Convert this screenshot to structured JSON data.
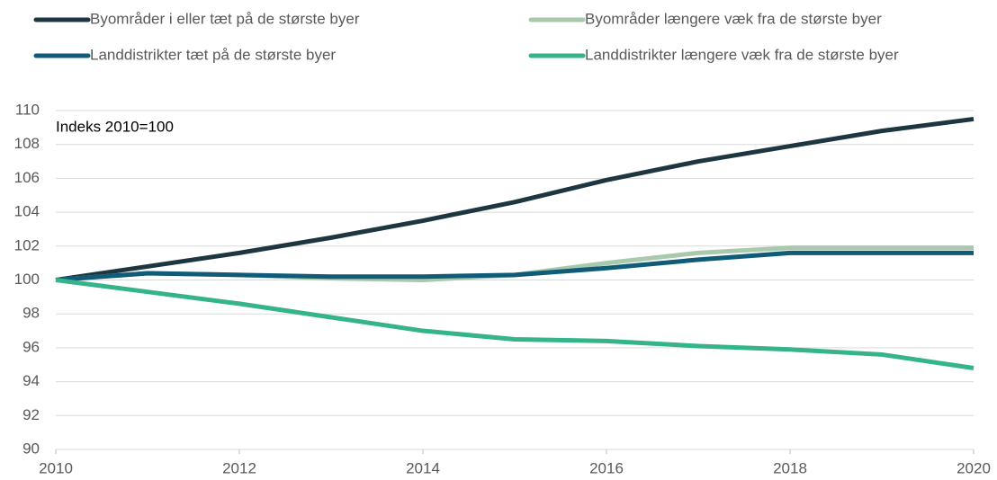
{
  "chart_data": {
    "type": "line",
    "annotation": "Indeks 2010=100",
    "x": [
      2010,
      2011,
      2012,
      2013,
      2014,
      2015,
      2016,
      2017,
      2018,
      2019,
      2020
    ],
    "series": [
      {
        "name": "Byområder i eller tæt på de største byer",
        "color": "#1d3640",
        "values": [
          100,
          100.8,
          101.6,
          102.5,
          103.5,
          104.6,
          105.9,
          107.0,
          107.9,
          108.8,
          109.5
        ]
      },
      {
        "name": "Byområder længere væk fra de største byer",
        "color": "#a9c9ad",
        "values": [
          100,
          100.4,
          100.3,
          100.1,
          100.0,
          100.3,
          101.0,
          101.6,
          101.9,
          101.9,
          101.9
        ]
      },
      {
        "name": "Landdistrikter tæt på de største byer",
        "color": "#0f5b78",
        "values": [
          100,
          100.4,
          100.3,
          100.2,
          100.2,
          100.3,
          100.7,
          101.2,
          101.6,
          101.6,
          101.6
        ]
      },
      {
        "name": "Landdistrikter længere væk fra de største byer",
        "color": "#35b38b",
        "values": [
          100,
          99.3,
          98.6,
          97.8,
          97.0,
          96.5,
          96.4,
          96.1,
          95.9,
          95.6,
          94.8
        ]
      }
    ],
    "xlim": [
      2010,
      2020
    ],
    "xticks": [
      2010,
      2012,
      2014,
      2016,
      2018,
      2020
    ],
    "ylim": [
      90,
      110
    ],
    "yticks": [
      90,
      92,
      94,
      96,
      98,
      100,
      102,
      104,
      106,
      108,
      110
    ],
    "grid": true
  }
}
